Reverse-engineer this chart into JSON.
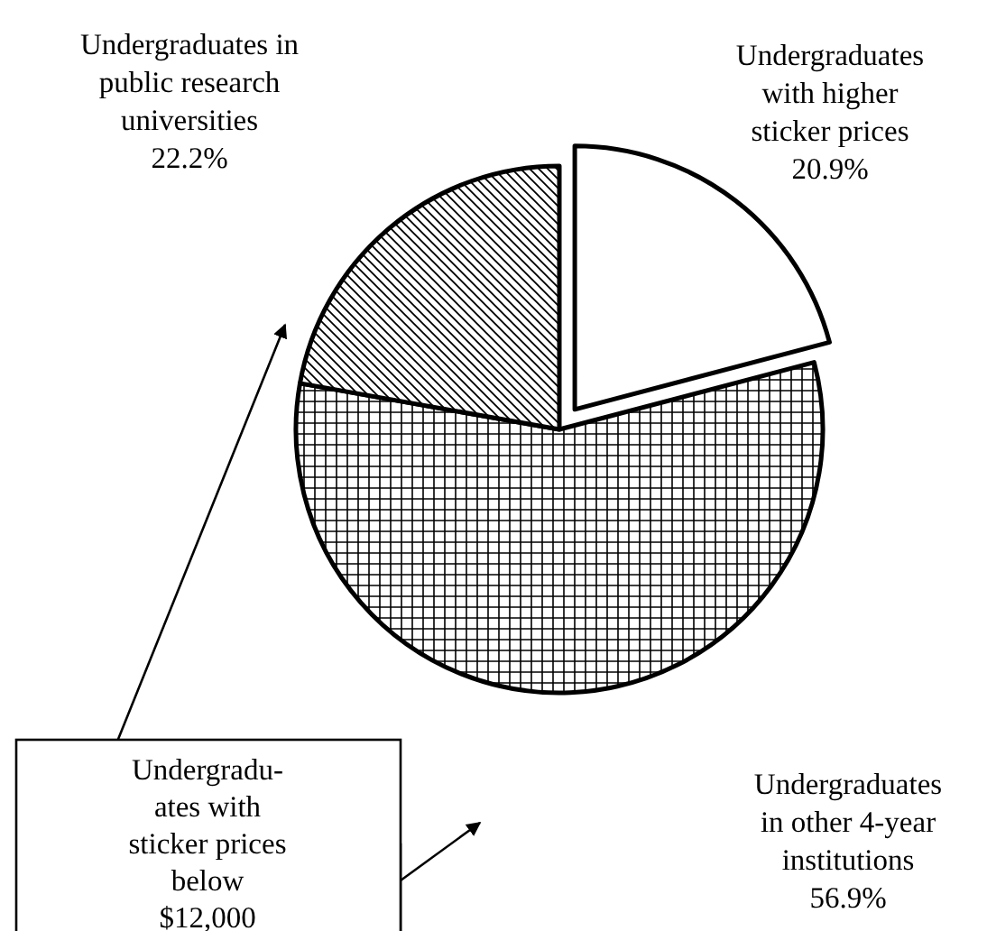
{
  "chart_data": {
    "type": "pie",
    "categories": [
      "Undergraduates\nwith higher\nsticker prices",
      "Undergraduates\nin other 4-year\ninstitutions",
      "Undergraduates in\npublic research\nuniversities"
    ],
    "values": [
      20.9,
      56.9,
      22.2
    ],
    "colors": [
      "#000000",
      "#000000",
      "#000000"
    ],
    "value_labels": [
      "20.9%",
      "56.9%",
      "22.2%"
    ],
    "annotations": [
      "Undergradu-\nates with\nsticker prices\nbelow\n$12,000"
    ]
  }
}
